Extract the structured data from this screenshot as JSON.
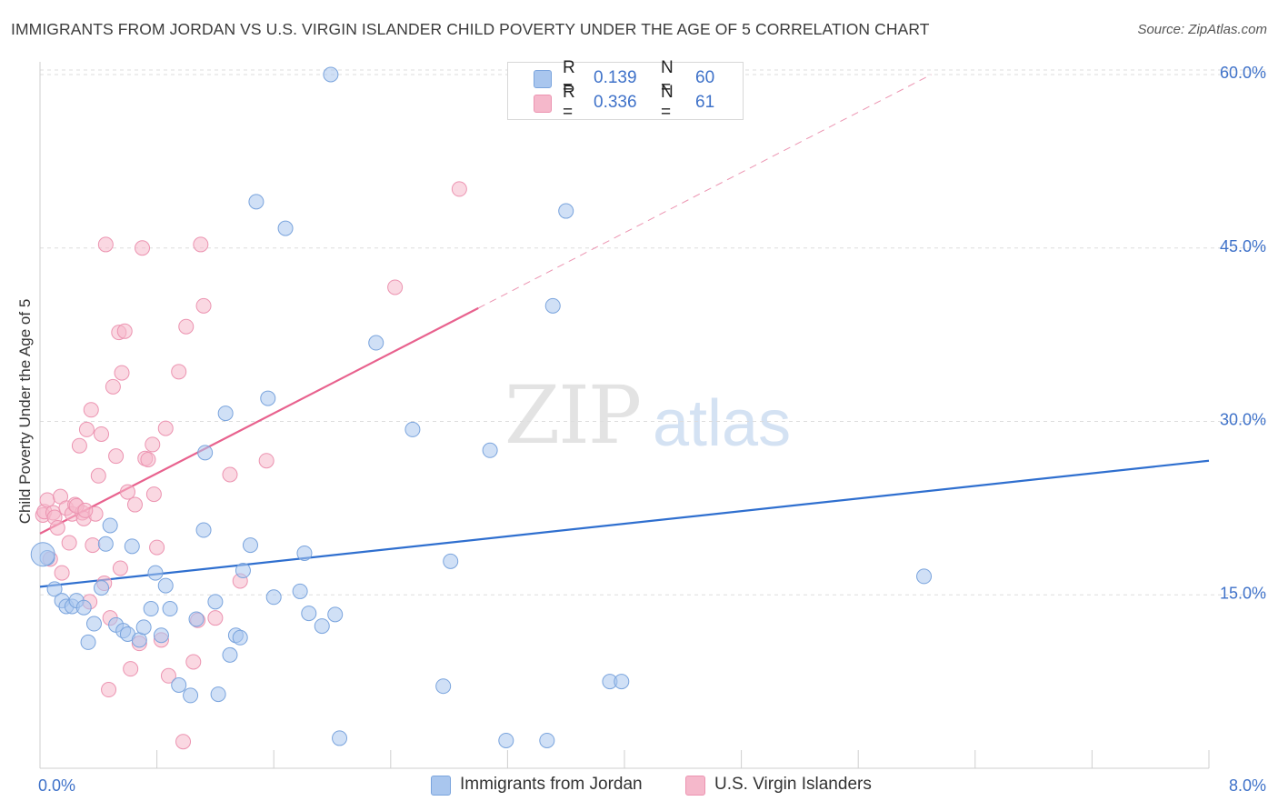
{
  "header": {
    "title": "IMMIGRANTS FROM JORDAN VS U.S. VIRGIN ISLANDER CHILD POVERTY UNDER THE AGE OF 5 CORRELATION CHART",
    "source": "Source: ZipAtlas.com"
  },
  "watermark": {
    "zip": "ZIP",
    "atlas": "atlas"
  },
  "legend": {
    "rows": [
      {
        "r_label": "R =",
        "r_value": "0.139",
        "n_label": "N =",
        "n_value": "60",
        "color": "#a9c6ee"
      },
      {
        "r_label": "R =",
        "r_value": "0.336",
        "n_label": "N =",
        "n_value": "61",
        "color": "#f5b8cb"
      }
    ]
  },
  "bottom_legend": {
    "series1": "Immigrants from Jordan",
    "series2": "U.S. Virgin Islanders"
  },
  "colors": {
    "blue_fill": "#a9c6ee",
    "blue_stroke": "#7aa4dd",
    "blue_line": "#2f6fcf",
    "pink_fill": "#f5b8cb",
    "pink_stroke": "#ec94b1",
    "pink_line": "#e8628e",
    "grid": "#dddddd",
    "axis_text": "#3f72c9"
  },
  "chart_data": {
    "type": "scatter",
    "title": "IMMIGRANTS FROM JORDAN VS U.S. VIRGIN ISLANDER CHILD POVERTY UNDER THE AGE OF 5 CORRELATION CHART",
    "xlabel": "",
    "ylabel": "Child Poverty Under the Age of 5",
    "xlim": [
      0,
      8
    ],
    "ylim": [
      0,
      60
    ],
    "x_tick_labels": [
      "0.0%",
      "8.0%"
    ],
    "y_ticks": [
      15,
      30,
      45,
      60
    ],
    "y_tick_labels": [
      "15.0%",
      "30.0%",
      "45.0%",
      "60.0%"
    ],
    "series": [
      {
        "name": "Immigrants from Jordan",
        "R": 0.139,
        "N": 60,
        "trend": {
          "x0": 0.0,
          "y0": 15.7,
          "x1": 8.0,
          "y1": 26.6
        },
        "points": [
          [
            0.05,
            18.2
          ],
          [
            0.1,
            15.5
          ],
          [
            0.15,
            14.5
          ],
          [
            0.18,
            14.0
          ],
          [
            0.22,
            14.0
          ],
          [
            0.25,
            14.5
          ],
          [
            0.3,
            13.9
          ],
          [
            0.33,
            10.9
          ],
          [
            0.37,
            12.5
          ],
          [
            0.42,
            15.6
          ],
          [
            0.45,
            19.4
          ],
          [
            0.48,
            21.0
          ],
          [
            0.52,
            12.4
          ],
          [
            0.57,
            11.9
          ],
          [
            0.6,
            11.6
          ],
          [
            0.63,
            19.2
          ],
          [
            0.68,
            11.1
          ],
          [
            0.71,
            12.2
          ],
          [
            0.76,
            13.8
          ],
          [
            0.79,
            16.9
          ],
          [
            0.83,
            11.5
          ],
          [
            0.86,
            15.8
          ],
          [
            0.89,
            13.8
          ],
          [
            0.95,
            7.2
          ],
          [
            1.03,
            6.3
          ],
          [
            1.07,
            12.9
          ],
          [
            1.12,
            20.6
          ],
          [
            1.13,
            27.3
          ],
          [
            1.2,
            14.4
          ],
          [
            1.22,
            6.4
          ],
          [
            1.27,
            30.7
          ],
          [
            1.3,
            9.8
          ],
          [
            1.34,
            11.5
          ],
          [
            1.37,
            11.3
          ],
          [
            1.39,
            17.1
          ],
          [
            1.44,
            19.3
          ],
          [
            1.48,
            49.0
          ],
          [
            1.56,
            32.0
          ],
          [
            1.6,
            14.8
          ],
          [
            1.68,
            46.7
          ],
          [
            1.78,
            15.3
          ],
          [
            1.81,
            18.6
          ],
          [
            1.84,
            13.4
          ],
          [
            1.93,
            12.3
          ],
          [
            1.99,
            60.0
          ],
          [
            2.02,
            13.3
          ],
          [
            2.05,
            2.6
          ],
          [
            2.3,
            36.8
          ],
          [
            2.55,
            29.3
          ],
          [
            2.76,
            7.1
          ],
          [
            2.81,
            17.9
          ],
          [
            3.08,
            27.5
          ],
          [
            3.19,
            2.4
          ],
          [
            3.47,
            2.4
          ],
          [
            3.51,
            40.0
          ],
          [
            3.6,
            48.2
          ],
          [
            3.9,
            7.5
          ],
          [
            3.98,
            7.5
          ],
          [
            6.05,
            16.6
          ],
          [
            0.02,
            18.5
          ]
        ]
      },
      {
        "name": "U.S. Virgin Islanders",
        "R": 0.336,
        "N": 61,
        "trend": {
          "x0": 0.0,
          "y0": 20.3,
          "x1": 3.0,
          "y1": 39.8,
          "dash_to_x": 6.1,
          "dash_to_y": 60.0
        },
        "points": [
          [
            0.02,
            21.9
          ],
          [
            0.03,
            22.2
          ],
          [
            0.05,
            23.2
          ],
          [
            0.07,
            18.1
          ],
          [
            0.09,
            22.1
          ],
          [
            0.1,
            21.7
          ],
          [
            0.12,
            20.8
          ],
          [
            0.14,
            23.5
          ],
          [
            0.15,
            16.9
          ],
          [
            0.18,
            22.5
          ],
          [
            0.2,
            19.5
          ],
          [
            0.22,
            22.0
          ],
          [
            0.24,
            22.8
          ],
          [
            0.27,
            27.9
          ],
          [
            0.29,
            22.1
          ],
          [
            0.3,
            21.6
          ],
          [
            0.32,
            29.3
          ],
          [
            0.34,
            14.4
          ],
          [
            0.35,
            31.0
          ],
          [
            0.36,
            19.3
          ],
          [
            0.38,
            22.0
          ],
          [
            0.4,
            25.3
          ],
          [
            0.42,
            28.9
          ],
          [
            0.44,
            16.0
          ],
          [
            0.45,
            45.3
          ],
          [
            0.47,
            6.8
          ],
          [
            0.48,
            13.0
          ],
          [
            0.5,
            33.0
          ],
          [
            0.52,
            27.0
          ],
          [
            0.54,
            37.7
          ],
          [
            0.55,
            17.3
          ],
          [
            0.56,
            34.2
          ],
          [
            0.58,
            37.8
          ],
          [
            0.6,
            23.9
          ],
          [
            0.62,
            8.6
          ],
          [
            0.65,
            22.8
          ],
          [
            0.68,
            10.8
          ],
          [
            0.7,
            45.0
          ],
          [
            0.72,
            26.8
          ],
          [
            0.74,
            26.7
          ],
          [
            0.77,
            28.0
          ],
          [
            0.78,
            23.7
          ],
          [
            0.8,
            19.1
          ],
          [
            0.83,
            11.1
          ],
          [
            0.86,
            29.4
          ],
          [
            0.88,
            8.0
          ],
          [
            0.95,
            34.3
          ],
          [
            0.98,
            2.3
          ],
          [
            1.0,
            38.2
          ],
          [
            1.05,
            9.2
          ],
          [
            1.08,
            12.8
          ],
          [
            1.1,
            45.3
          ],
          [
            1.12,
            40.0
          ],
          [
            1.2,
            13.0
          ],
          [
            1.3,
            25.4
          ],
          [
            1.37,
            16.2
          ],
          [
            1.55,
            26.6
          ],
          [
            2.43,
            41.6
          ],
          [
            2.87,
            50.1
          ],
          [
            0.25,
            22.7
          ],
          [
            0.31,
            22.3
          ]
        ]
      }
    ]
  }
}
